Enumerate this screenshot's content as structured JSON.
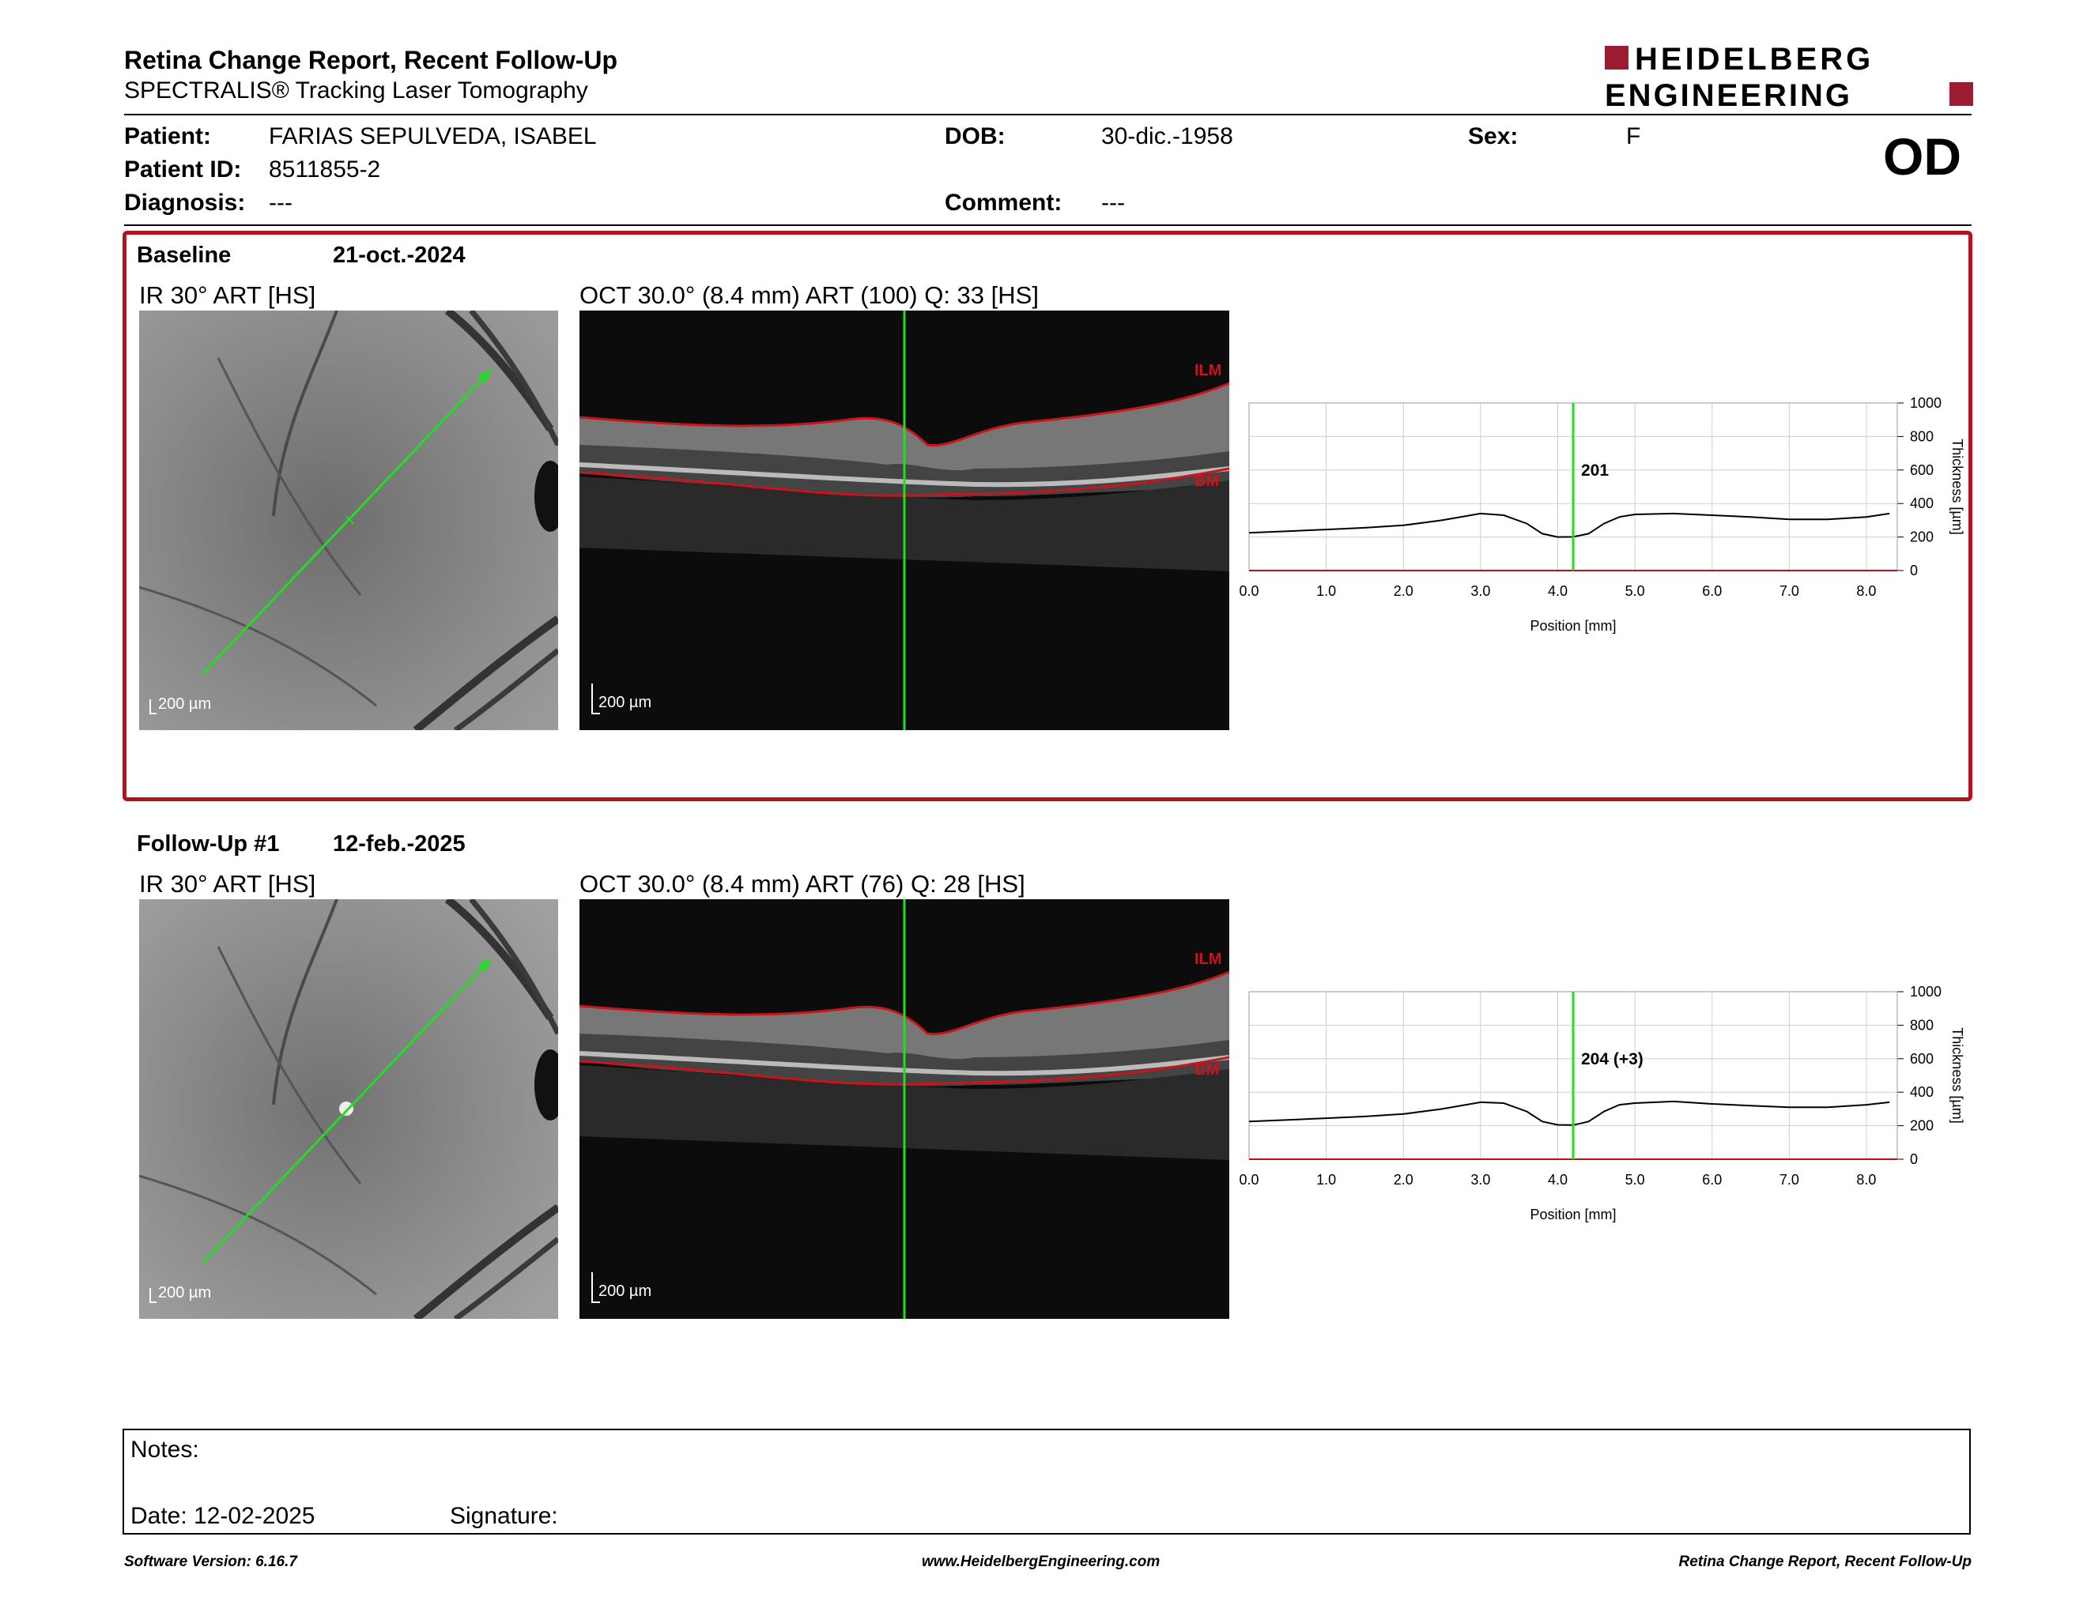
{
  "header": {
    "title": "Retina Change Report, Recent Follow-Up",
    "subtitle": "SPECTRALIS® Tracking Laser Tomography",
    "logo_line1": "HEIDELBERG",
    "logo_line2": "ENGINEERING",
    "eye": "OD"
  },
  "patient": {
    "patient_label": "Patient:",
    "patient_value": "FARIAS SEPULVEDA, ISABEL",
    "dob_label": "DOB:",
    "dob_value": "30-dic.-1958",
    "sex_label": "Sex:",
    "sex_value": "F",
    "id_label": "Patient ID:",
    "id_value": "8511855-2",
    "diagnosis_label": "Diagnosis:",
    "diagnosis_value": "---",
    "comment_label": "Comment:",
    "comment_value": "---"
  },
  "baseline": {
    "label": "Baseline",
    "date": "21-oct.-2024",
    "ir_title": "IR 30° ART [HS]",
    "oct_title": "OCT 30.0° (8.4 mm) ART (100) Q: 33 [HS]",
    "ir_scale": "200 µm",
    "oct_scale": "200 µm",
    "ilm": "ILM",
    "bm": "BM",
    "marker_value": "201"
  },
  "followup": {
    "label": "Follow-Up #1",
    "date": "12-feb.-2025",
    "ir_title": "IR 30° ART [HS]",
    "oct_title": "OCT 30.0° (8.4 mm) ART (76) Q: 28 [HS]",
    "ir_scale": "200 µm",
    "oct_scale": "200 µm",
    "ilm": "ILM",
    "bm": "BM",
    "marker_value": "204 (+3)"
  },
  "chart_common": {
    "xlabel": "Position [mm]",
    "ylabel": "Thickness [µm]",
    "x_ticks": [
      "0.0",
      "1.0",
      "2.0",
      "3.0",
      "4.0",
      "5.0",
      "6.0",
      "7.0",
      "8.0"
    ],
    "y_ticks": [
      "0",
      "200",
      "400",
      "600",
      "800",
      "1000"
    ]
  },
  "chart_data": [
    {
      "type": "line",
      "xlabel": "Position [mm]",
      "ylabel": "Thickness [µm]",
      "xlim": [
        0,
        8.4
      ],
      "ylim": [
        0,
        1000
      ],
      "grid": true,
      "marker_x": 4.2,
      "marker_label": "201",
      "x": [
        0.0,
        0.5,
        1.0,
        1.5,
        2.0,
        2.5,
        3.0,
        3.3,
        3.6,
        3.8,
        4.0,
        4.2,
        4.4,
        4.6,
        4.8,
        5.0,
        5.5,
        6.0,
        6.5,
        7.0,
        7.5,
        8.0,
        8.3
      ],
      "y": [
        225,
        235,
        245,
        255,
        270,
        300,
        340,
        330,
        280,
        220,
        200,
        201,
        220,
        280,
        320,
        335,
        340,
        330,
        320,
        305,
        305,
        320,
        340
      ]
    },
    {
      "type": "line",
      "xlabel": "Position [mm]",
      "ylabel": "Thickness [µm]",
      "xlim": [
        0,
        8.4
      ],
      "ylim": [
        0,
        1000
      ],
      "grid": true,
      "marker_x": 4.2,
      "marker_label": "204 (+3)",
      "x": [
        0.0,
        0.5,
        1.0,
        1.5,
        2.0,
        2.5,
        3.0,
        3.3,
        3.6,
        3.8,
        4.0,
        4.2,
        4.4,
        4.6,
        4.8,
        5.0,
        5.5,
        6.0,
        6.5,
        7.0,
        7.5,
        8.0,
        8.3
      ],
      "y": [
        225,
        235,
        245,
        255,
        270,
        300,
        340,
        335,
        285,
        225,
        205,
        204,
        225,
        285,
        325,
        335,
        345,
        330,
        320,
        310,
        310,
        325,
        340
      ]
    }
  ],
  "notes": {
    "notes_label": "Notes:",
    "date_label": "Date: 12-02-2025",
    "signature_label": "Signature:"
  },
  "footer": {
    "left": "Software Version: 6.16.7",
    "center": "www.HeidelbergEngineering.com",
    "right": "Retina Change Report, Recent Follow-Up"
  },
  "colors": {
    "brand": "#9b1b30",
    "frame": "#b2121b",
    "marker": "#22dd22"
  }
}
